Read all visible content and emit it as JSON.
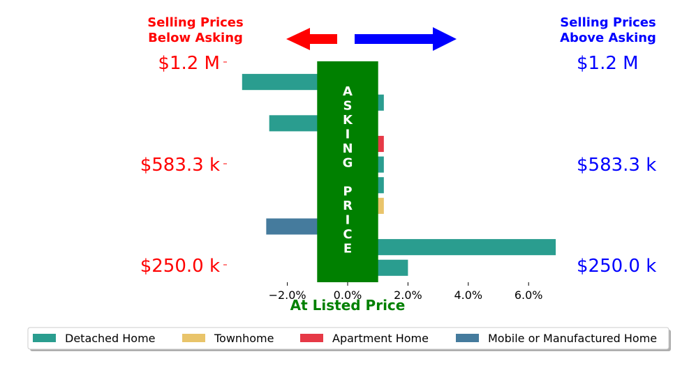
{
  "chart_data": {
    "type": "bar",
    "orientation": "horizontal",
    "header_left": [
      "Selling Prices",
      "Below Asking"
    ],
    "header_right": [
      "Selling Prices",
      "Above Asking"
    ],
    "y_labels_left": [
      "$1.2 M",
      "$583.3 k",
      "$250.0 k"
    ],
    "y_labels_right": [
      "$1.2 M",
      "$583.3 k",
      "$250.0 k"
    ],
    "asking_text": [
      "A",
      "S",
      "K",
      "I",
      "N",
      "G",
      "",
      "P",
      "R",
      "I",
      "C",
      "E"
    ],
    "x_tick_labels": [
      "−2.0%",
      "0.0%",
      "2.0%",
      "4.0%",
      "6.0%"
    ],
    "x_ticks": [
      -2,
      0,
      2,
      4,
      6
    ],
    "xlim": [
      -3.5,
      7
    ],
    "xlabel": "At Listed Price",
    "asking_band": [
      -1,
      1
    ],
    "bars": [
      {
        "type": "Detached Home",
        "value": -3.5
      },
      {
        "type": "Detached Home",
        "value": 1.2
      },
      {
        "type": "Detached Home",
        "value": -2.6
      },
      {
        "type": "Apartment Home",
        "value": 1.2
      },
      {
        "type": "Detached Home",
        "value": 1.2
      },
      {
        "type": "Detached Home",
        "value": 1.2
      },
      {
        "type": "Townhome",
        "value": 1.2
      },
      {
        "type": "Mobile or Manufactured Home",
        "value": -2.7
      },
      {
        "type": "Detached Home",
        "value": 6.9
      },
      {
        "type": "Detached Home",
        "value": 2.0
      }
    ],
    "legend": [
      {
        "name": "Detached Home",
        "color": "#2a9d8f"
      },
      {
        "name": "Townhome",
        "color": "#e9c46a"
      },
      {
        "name": "Apartment Home",
        "color": "#e63946"
      },
      {
        "name": "Mobile or Manufactured Home",
        "color": "#457b9d"
      }
    ],
    "legend_placement": "bottom",
    "colors": {
      "below": "#ff0000",
      "above": "#0000ff",
      "asking": "#008000",
      "asking_text": "#ffffff"
    }
  }
}
